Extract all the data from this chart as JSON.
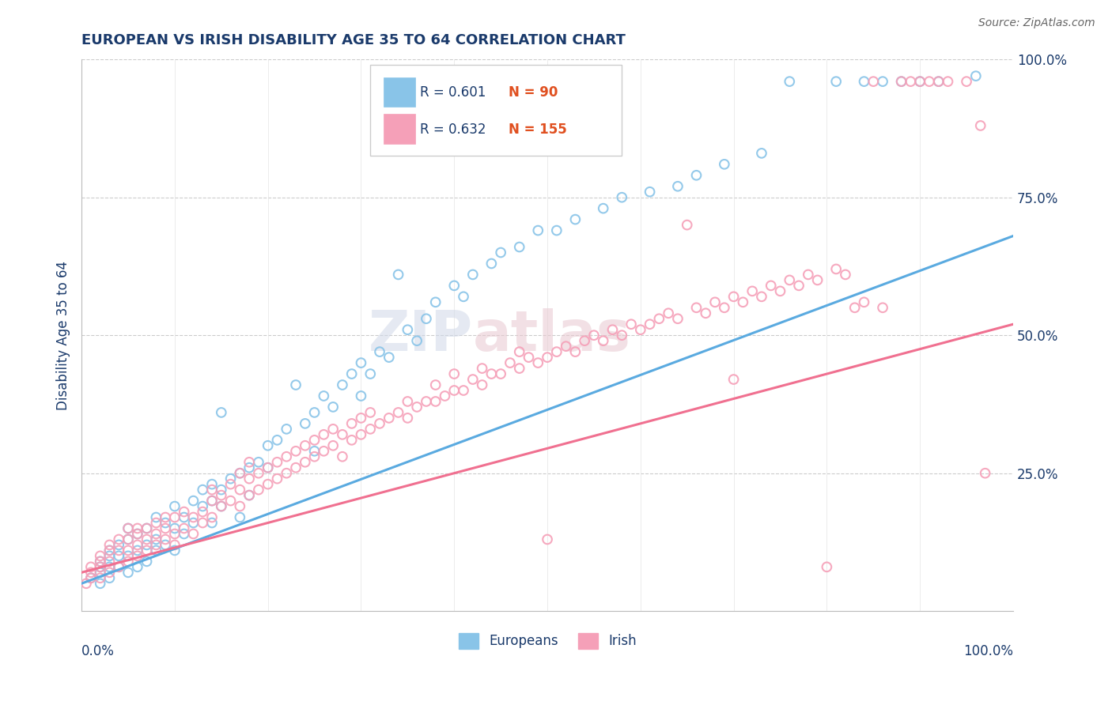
{
  "title": "EUROPEAN VS IRISH DISABILITY AGE 35 TO 64 CORRELATION CHART",
  "source": "Source: ZipAtlas.com",
  "ylabel": "Disability Age 35 to 64",
  "title_color": "#1a3a6b",
  "axis_label_color": "#1a3a6b",
  "tick_color": "#1a3a6b",
  "source_color": "#666666",
  "european_color": "#89c4e8",
  "irish_color": "#f5a0b8",
  "european_line_color": "#5aaae0",
  "irish_line_color": "#f07090",
  "R_european": 0.601,
  "N_european": 90,
  "R_irish": 0.632,
  "N_irish": 155,
  "legend_label_european": "Europeans",
  "legend_label_irish": "Irish",
  "xlim": [
    0.0,
    1.0
  ],
  "ylim": [
    0.0,
    1.0
  ],
  "ytick_vals": [
    0.25,
    0.5,
    0.75,
    1.0
  ],
  "ytick_labels": [
    "25.0%",
    "50.0%",
    "75.0%",
    "100.0%"
  ],
  "eu_line_x": [
    0.0,
    1.0
  ],
  "eu_line_y": [
    0.05,
    0.68
  ],
  "ir_line_x": [
    0.0,
    1.0
  ],
  "ir_line_y": [
    0.07,
    0.52
  ],
  "european_scatter": [
    [
      0.01,
      0.06
    ],
    [
      0.02,
      0.05
    ],
    [
      0.02,
      0.07
    ],
    [
      0.02,
      0.08
    ],
    [
      0.02,
      0.09
    ],
    [
      0.03,
      0.06
    ],
    [
      0.03,
      0.08
    ],
    [
      0.03,
      0.1
    ],
    [
      0.03,
      0.11
    ],
    [
      0.04,
      0.08
    ],
    [
      0.04,
      0.1
    ],
    [
      0.04,
      0.12
    ],
    [
      0.05,
      0.07
    ],
    [
      0.05,
      0.1
    ],
    [
      0.05,
      0.13
    ],
    [
      0.05,
      0.15
    ],
    [
      0.06,
      0.08
    ],
    [
      0.06,
      0.11
    ],
    [
      0.06,
      0.14
    ],
    [
      0.07,
      0.09
    ],
    [
      0.07,
      0.12
    ],
    [
      0.07,
      0.15
    ],
    [
      0.08,
      0.11
    ],
    [
      0.08,
      0.13
    ],
    [
      0.08,
      0.17
    ],
    [
      0.09,
      0.12
    ],
    [
      0.09,
      0.16
    ],
    [
      0.1,
      0.11
    ],
    [
      0.1,
      0.15
    ],
    [
      0.1,
      0.19
    ],
    [
      0.11,
      0.14
    ],
    [
      0.11,
      0.17
    ],
    [
      0.12,
      0.16
    ],
    [
      0.12,
      0.2
    ],
    [
      0.13,
      0.19
    ],
    [
      0.13,
      0.22
    ],
    [
      0.14,
      0.16
    ],
    [
      0.14,
      0.2
    ],
    [
      0.14,
      0.23
    ],
    [
      0.15,
      0.19
    ],
    [
      0.15,
      0.22
    ],
    [
      0.15,
      0.36
    ],
    [
      0.16,
      0.24
    ],
    [
      0.17,
      0.17
    ],
    [
      0.17,
      0.25
    ],
    [
      0.18,
      0.21
    ],
    [
      0.18,
      0.26
    ],
    [
      0.19,
      0.27
    ],
    [
      0.2,
      0.26
    ],
    [
      0.2,
      0.3
    ],
    [
      0.21,
      0.31
    ],
    [
      0.22,
      0.33
    ],
    [
      0.23,
      0.41
    ],
    [
      0.24,
      0.34
    ],
    [
      0.25,
      0.29
    ],
    [
      0.25,
      0.36
    ],
    [
      0.26,
      0.39
    ],
    [
      0.27,
      0.37
    ],
    [
      0.28,
      0.41
    ],
    [
      0.29,
      0.43
    ],
    [
      0.3,
      0.39
    ],
    [
      0.3,
      0.45
    ],
    [
      0.31,
      0.43
    ],
    [
      0.32,
      0.47
    ],
    [
      0.33,
      0.46
    ],
    [
      0.34,
      0.61
    ],
    [
      0.35,
      0.51
    ],
    [
      0.36,
      0.49
    ],
    [
      0.37,
      0.53
    ],
    [
      0.38,
      0.56
    ],
    [
      0.4,
      0.59
    ],
    [
      0.41,
      0.57
    ],
    [
      0.42,
      0.61
    ],
    [
      0.44,
      0.63
    ],
    [
      0.45,
      0.65
    ],
    [
      0.47,
      0.66
    ],
    [
      0.49,
      0.69
    ],
    [
      0.51,
      0.69
    ],
    [
      0.53,
      0.71
    ],
    [
      0.56,
      0.73
    ],
    [
      0.58,
      0.75
    ],
    [
      0.61,
      0.76
    ],
    [
      0.64,
      0.77
    ],
    [
      0.66,
      0.79
    ],
    [
      0.69,
      0.81
    ],
    [
      0.73,
      0.83
    ],
    [
      0.76,
      0.96
    ],
    [
      0.81,
      0.96
    ],
    [
      0.84,
      0.96
    ],
    [
      0.86,
      0.96
    ],
    [
      0.88,
      0.96
    ],
    [
      0.9,
      0.96
    ],
    [
      0.92,
      0.96
    ],
    [
      0.96,
      0.97
    ]
  ],
  "irish_scatter": [
    [
      0.005,
      0.05
    ],
    [
      0.01,
      0.06
    ],
    [
      0.01,
      0.07
    ],
    [
      0.01,
      0.08
    ],
    [
      0.02,
      0.06
    ],
    [
      0.02,
      0.08
    ],
    [
      0.02,
      0.09
    ],
    [
      0.02,
      0.1
    ],
    [
      0.03,
      0.07
    ],
    [
      0.03,
      0.09
    ],
    [
      0.03,
      0.11
    ],
    [
      0.03,
      0.12
    ],
    [
      0.04,
      0.08
    ],
    [
      0.04,
      0.11
    ],
    [
      0.04,
      0.13
    ],
    [
      0.05,
      0.09
    ],
    [
      0.05,
      0.11
    ],
    [
      0.05,
      0.13
    ],
    [
      0.05,
      0.15
    ],
    [
      0.06,
      0.1
    ],
    [
      0.06,
      0.12
    ],
    [
      0.06,
      0.14
    ],
    [
      0.06,
      0.15
    ],
    [
      0.07,
      0.11
    ],
    [
      0.07,
      0.13
    ],
    [
      0.07,
      0.15
    ],
    [
      0.08,
      0.12
    ],
    [
      0.08,
      0.14
    ],
    [
      0.08,
      0.16
    ],
    [
      0.09,
      0.13
    ],
    [
      0.09,
      0.15
    ],
    [
      0.09,
      0.17
    ],
    [
      0.1,
      0.12
    ],
    [
      0.1,
      0.14
    ],
    [
      0.1,
      0.17
    ],
    [
      0.11,
      0.15
    ],
    [
      0.11,
      0.18
    ],
    [
      0.12,
      0.14
    ],
    [
      0.12,
      0.17
    ],
    [
      0.13,
      0.16
    ],
    [
      0.13,
      0.18
    ],
    [
      0.14,
      0.17
    ],
    [
      0.14,
      0.2
    ],
    [
      0.14,
      0.22
    ],
    [
      0.15,
      0.19
    ],
    [
      0.15,
      0.21
    ],
    [
      0.16,
      0.2
    ],
    [
      0.16,
      0.23
    ],
    [
      0.17,
      0.19
    ],
    [
      0.17,
      0.22
    ],
    [
      0.17,
      0.25
    ],
    [
      0.18,
      0.21
    ],
    [
      0.18,
      0.24
    ],
    [
      0.18,
      0.27
    ],
    [
      0.19,
      0.22
    ],
    [
      0.19,
      0.25
    ],
    [
      0.2,
      0.23
    ],
    [
      0.2,
      0.26
    ],
    [
      0.21,
      0.24
    ],
    [
      0.21,
      0.27
    ],
    [
      0.22,
      0.25
    ],
    [
      0.22,
      0.28
    ],
    [
      0.23,
      0.26
    ],
    [
      0.23,
      0.29
    ],
    [
      0.24,
      0.27
    ],
    [
      0.24,
      0.3
    ],
    [
      0.25,
      0.28
    ],
    [
      0.25,
      0.31
    ],
    [
      0.26,
      0.29
    ],
    [
      0.26,
      0.32
    ],
    [
      0.27,
      0.3
    ],
    [
      0.27,
      0.33
    ],
    [
      0.28,
      0.28
    ],
    [
      0.28,
      0.32
    ],
    [
      0.29,
      0.31
    ],
    [
      0.29,
      0.34
    ],
    [
      0.3,
      0.32
    ],
    [
      0.3,
      0.35
    ],
    [
      0.31,
      0.33
    ],
    [
      0.31,
      0.36
    ],
    [
      0.32,
      0.34
    ],
    [
      0.33,
      0.35
    ],
    [
      0.34,
      0.36
    ],
    [
      0.35,
      0.35
    ],
    [
      0.35,
      0.38
    ],
    [
      0.36,
      0.37
    ],
    [
      0.37,
      0.38
    ],
    [
      0.38,
      0.38
    ],
    [
      0.38,
      0.41
    ],
    [
      0.39,
      0.39
    ],
    [
      0.4,
      0.4
    ],
    [
      0.4,
      0.43
    ],
    [
      0.41,
      0.4
    ],
    [
      0.42,
      0.42
    ],
    [
      0.43,
      0.41
    ],
    [
      0.43,
      0.44
    ],
    [
      0.44,
      0.43
    ],
    [
      0.45,
      0.43
    ],
    [
      0.46,
      0.45
    ],
    [
      0.47,
      0.44
    ],
    [
      0.47,
      0.47
    ],
    [
      0.48,
      0.46
    ],
    [
      0.49,
      0.45
    ],
    [
      0.5,
      0.13
    ],
    [
      0.5,
      0.46
    ],
    [
      0.51,
      0.47
    ],
    [
      0.52,
      0.48
    ],
    [
      0.53,
      0.47
    ],
    [
      0.54,
      0.49
    ],
    [
      0.55,
      0.5
    ],
    [
      0.56,
      0.49
    ],
    [
      0.57,
      0.51
    ],
    [
      0.58,
      0.5
    ],
    [
      0.59,
      0.52
    ],
    [
      0.6,
      0.51
    ],
    [
      0.61,
      0.52
    ],
    [
      0.62,
      0.53
    ],
    [
      0.63,
      0.54
    ],
    [
      0.64,
      0.53
    ],
    [
      0.65,
      0.7
    ],
    [
      0.66,
      0.55
    ],
    [
      0.67,
      0.54
    ],
    [
      0.68,
      0.56
    ],
    [
      0.69,
      0.55
    ],
    [
      0.7,
      0.42
    ],
    [
      0.7,
      0.57
    ],
    [
      0.71,
      0.56
    ],
    [
      0.72,
      0.58
    ],
    [
      0.73,
      0.57
    ],
    [
      0.74,
      0.59
    ],
    [
      0.75,
      0.58
    ],
    [
      0.76,
      0.6
    ],
    [
      0.77,
      0.59
    ],
    [
      0.78,
      0.61
    ],
    [
      0.79,
      0.6
    ],
    [
      0.8,
      0.08
    ],
    [
      0.81,
      0.62
    ],
    [
      0.82,
      0.61
    ],
    [
      0.83,
      0.55
    ],
    [
      0.84,
      0.56
    ],
    [
      0.85,
      0.96
    ],
    [
      0.86,
      0.55
    ],
    [
      0.88,
      0.96
    ],
    [
      0.89,
      0.96
    ],
    [
      0.9,
      0.96
    ],
    [
      0.91,
      0.96
    ],
    [
      0.92,
      0.96
    ],
    [
      0.93,
      0.96
    ],
    [
      0.95,
      0.96
    ],
    [
      0.97,
      0.25
    ],
    [
      0.965,
      0.88
    ]
  ]
}
